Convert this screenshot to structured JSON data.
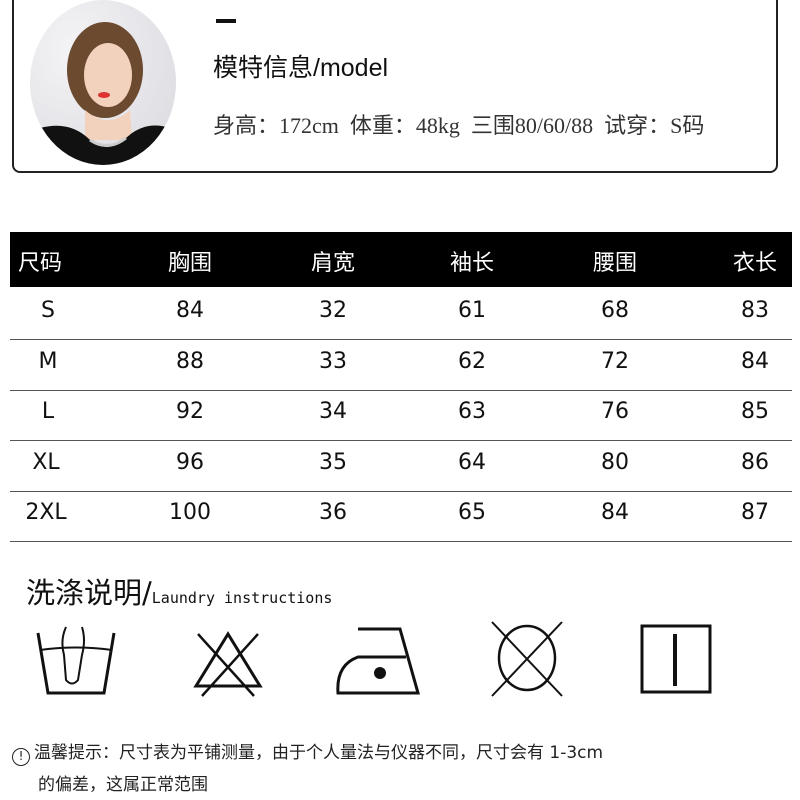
{
  "model": {
    "title": "模特信息/model",
    "stats": "身高：172cm  体重：48kg  三围80/60/88  试穿：S码"
  },
  "table": {
    "headers": [
      "尺码",
      "胸围",
      "肩宽",
      "袖长",
      "腰围",
      "衣长"
    ],
    "rows": [
      [
        "S",
        "84",
        "32",
        "61",
        "68",
        "83"
      ],
      [
        "M",
        "88",
        "33",
        "62",
        "72",
        "84"
      ],
      [
        "L",
        "92",
        "34",
        "63",
        "76",
        "85"
      ],
      [
        "XL",
        "96",
        "35",
        "64",
        "80",
        "86"
      ],
      [
        "2XL",
        "100",
        "36",
        "65",
        "84",
        "87"
      ]
    ]
  },
  "laundry": {
    "title_cn": "洗涤说明/",
    "title_en": "Laundry instructions",
    "icons": [
      "hand-wash-icon",
      "no-bleach-icon",
      "iron-low-icon",
      "no-dry-clean-icon",
      "drip-dry-icon"
    ]
  },
  "tip": {
    "line1": "温馨提示：尺寸表为平铺测量，由于个人量法与仪器不同，尺寸会有 1-3cm",
    "line2": "的偏差，这属正常范围",
    "icon": "!"
  }
}
